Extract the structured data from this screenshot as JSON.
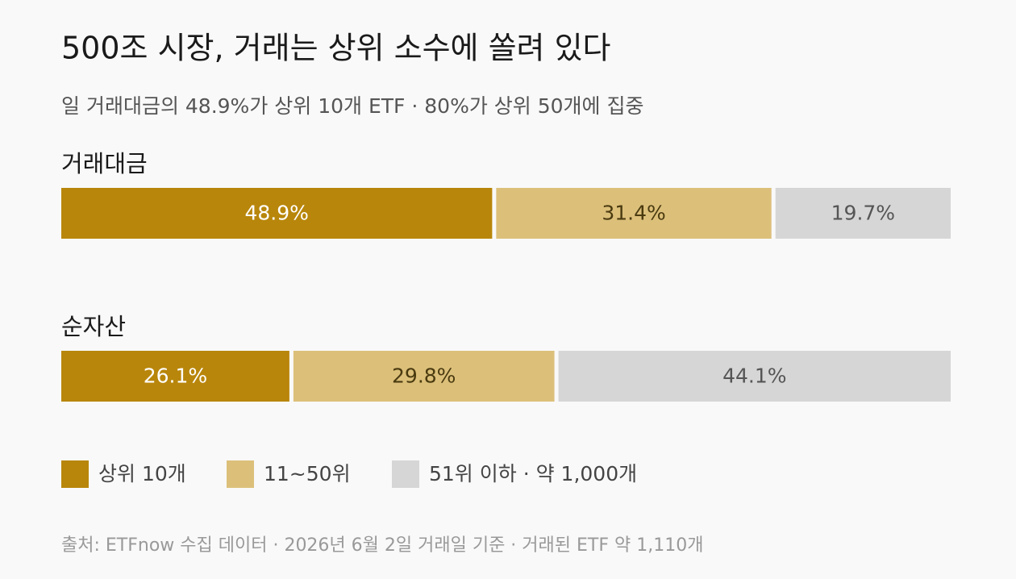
{
  "chart_data": {
    "type": "stacked_bar",
    "orientation": "horizontal",
    "title": "500조 시장, 거래는 상위 소수에 쏠려 있다",
    "subtitle": "일 거래대금의 48.9%가 상위 10개 ETF · 80%가 상위 50개에 집중",
    "source": "출처: ETFnow 수집 데이터 · 2026년 6월 2일 거래일 기준 · 거래된 ETF 약 1,110개",
    "categories": [
      "거래대금",
      "순자산"
    ],
    "xlim": [
      0,
      100
    ],
    "series": [
      {
        "name": "상위 10개",
        "color": "#b8860b",
        "values": [
          48.9,
          26.1
        ],
        "value_labels": [
          "48.9%",
          "26.1%"
        ]
      },
      {
        "name": "11~50위",
        "color": "#dcc07a",
        "values": [
          31.4,
          29.8
        ],
        "value_labels": [
          "31.4%",
          "29.8%"
        ]
      },
      {
        "name": "51위 이하 · 약 1,000개",
        "color": "#d6d6d6",
        "values": [
          19.7,
          44.1
        ],
        "value_labels": [
          "19.7%",
          "44.1%"
        ]
      }
    ],
    "legend": "bottom"
  }
}
